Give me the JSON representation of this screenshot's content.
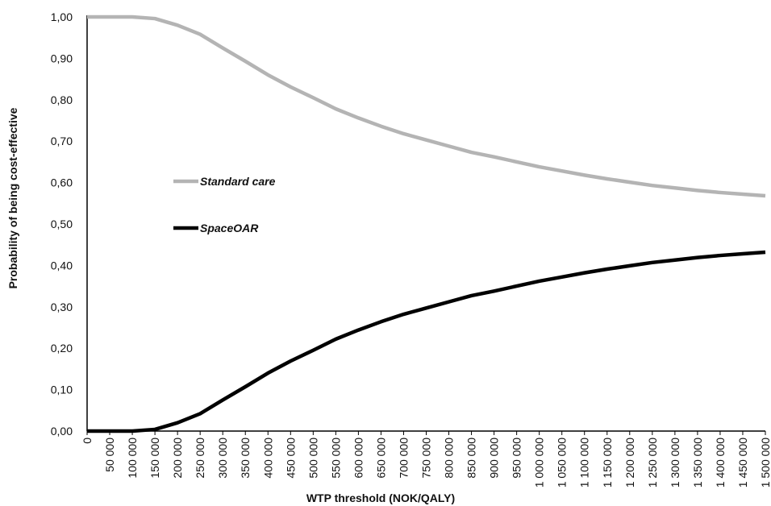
{
  "chart_data": {
    "type": "line",
    "title": "",
    "xlabel": "WTP threshold (NOK/QALY)",
    "ylabel": "Probability of being cost-effective",
    "x": [
      0,
      50000,
      100000,
      150000,
      200000,
      250000,
      300000,
      350000,
      400000,
      450000,
      500000,
      550000,
      600000,
      650000,
      700000,
      750000,
      800000,
      850000,
      900000,
      950000,
      1000000,
      1050000,
      1100000,
      1150000,
      1200000,
      1250000,
      1300000,
      1350000,
      1400000,
      1450000,
      1500000
    ],
    "x_tick_labels": [
      "0",
      "50 000",
      "100 000",
      "150 000",
      "200 000",
      "250 000",
      "300 000",
      "350 000",
      "400 000",
      "450 000",
      "500 000",
      "550 000",
      "600 000",
      "650 000",
      "700 000",
      "750 000",
      "800 000",
      "850 000",
      "900 000",
      "950 000",
      "1 000 000",
      "1 050 000",
      "1 100 000",
      "1 150 000",
      "1 200 000",
      "1 250 000",
      "1 300 000",
      "1 350 000",
      "1 400 000",
      "1 450 000",
      "1 500 000"
    ],
    "y_tick_labels": [
      "0,00",
      "0,10",
      "0,20",
      "0,30",
      "0,40",
      "0,50",
      "0,60",
      "0,70",
      "0,80",
      "0,90",
      "1,00"
    ],
    "y_ticks": [
      0,
      0.1,
      0.2,
      0.3,
      0.4,
      0.5,
      0.6,
      0.7,
      0.8,
      0.9,
      1.0
    ],
    "xlim": [
      0,
      1500000
    ],
    "ylim": [
      0,
      1.0
    ],
    "grid": false,
    "legend_position": "left",
    "series": [
      {
        "name": "Standard care",
        "color": "#b4b4b4",
        "values": [
          1.0,
          1.0,
          1.0,
          0.996,
          0.98,
          0.958,
          0.925,
          0.893,
          0.86,
          0.831,
          0.805,
          0.778,
          0.756,
          0.736,
          0.718,
          0.703,
          0.688,
          0.673,
          0.662,
          0.65,
          0.638,
          0.628,
          0.618,
          0.609,
          0.601,
          0.593,
          0.587,
          0.581,
          0.576,
          0.572,
          0.568
        ]
      },
      {
        "name": "SpaceOAR",
        "color": "#000000",
        "values": [
          0.0,
          0.0,
          0.0,
          0.004,
          0.02,
          0.042,
          0.075,
          0.107,
          0.14,
          0.169,
          0.195,
          0.222,
          0.244,
          0.264,
          0.282,
          0.297,
          0.312,
          0.327,
          0.338,
          0.35,
          0.362,
          0.372,
          0.382,
          0.391,
          0.399,
          0.407,
          0.413,
          0.419,
          0.424,
          0.428,
          0.432
        ]
      }
    ]
  }
}
